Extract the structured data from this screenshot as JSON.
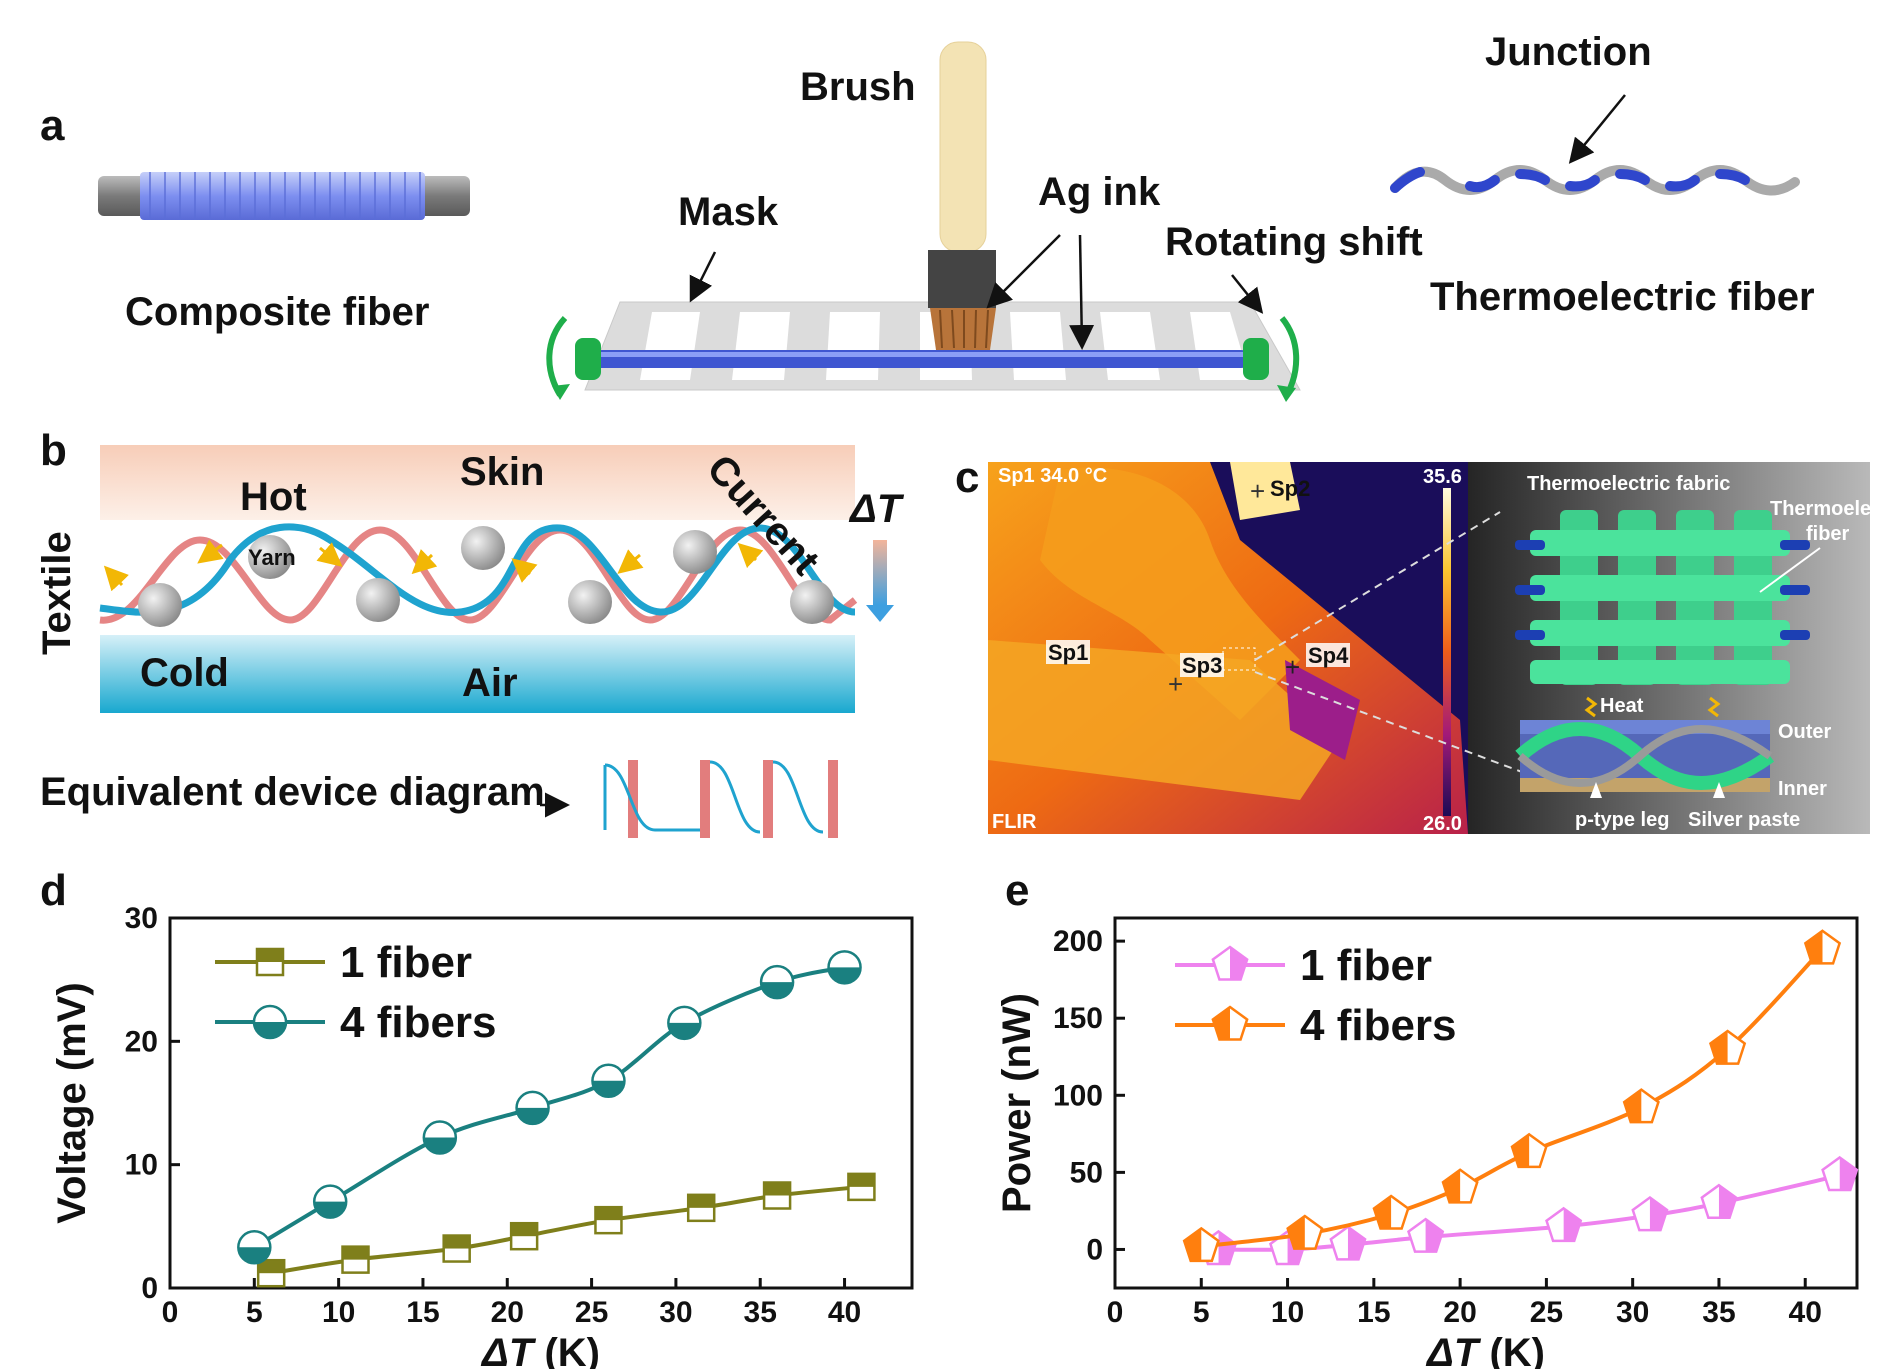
{
  "panels": {
    "a": {
      "letter": "a",
      "brush": "Brush",
      "junction": "Junction",
      "mask": "Mask",
      "ag_ink": "Ag ink",
      "rotating_shift": "Rotating shift",
      "composite_fiber": "Composite fiber",
      "thermoelectric_fiber": "Thermoelectric fiber"
    },
    "b": {
      "letter": "b",
      "hot": "Hot",
      "skin": "Skin",
      "current": "Current",
      "delta_t": "ΔT",
      "yarn": "Yarn",
      "textile": "Textile",
      "cold": "Cold",
      "air": "Air",
      "equivalent": "Equivalent device diagram"
    },
    "c": {
      "letter": "c",
      "readout": "Sp1  34.0 °C",
      "max_temp": "35.6 °C",
      "min_temp": "26.0 °C",
      "sp1": "Sp1",
      "sp2": "Sp2",
      "sp3": "Sp3",
      "sp4": "Sp4",
      "flir": "FLIR",
      "thermoelectric_fabric": "Thermoelectric fabric",
      "thermoelectric_fiber_1": "Thermoelectric",
      "thermoelectric_fiber_2": "fiber",
      "heat": "Heat",
      "outer": "Outer",
      "inner": "Inner",
      "ptype": "p-type leg",
      "silver": "Silver paste"
    }
  },
  "chart_data": [
    {
      "id": "d",
      "panel_letter": "d",
      "type": "line",
      "xlabel_sym": "ΔT",
      "xlabel_unit": " (K)",
      "ylabel": "Voltage (mV)",
      "xlim": [
        0,
        44
      ],
      "ylim": [
        0,
        30
      ],
      "xticks": [
        0,
        5,
        10,
        15,
        20,
        25,
        30,
        35,
        40
      ],
      "yticks": [
        0,
        10,
        20,
        30
      ],
      "legend_position": "top-left",
      "series": [
        {
          "name": "1 fiber",
          "color": "#7f7f1b",
          "marker": "square-top-half",
          "x": [
            6,
            11,
            17,
            21,
            26,
            31.5,
            36,
            41
          ],
          "y": [
            1.2,
            2.3,
            3.2,
            4.2,
            5.5,
            6.5,
            7.5,
            8.2
          ]
        },
        {
          "name": "4 fibers",
          "color": "#1a8080",
          "marker": "circle-bottom-half",
          "x": [
            5,
            9.5,
            16,
            21.5,
            26,
            30.5,
            36,
            40
          ],
          "y": [
            3.3,
            7,
            12.2,
            14.6,
            16.8,
            21.5,
            24.8,
            26
          ]
        }
      ]
    },
    {
      "id": "e",
      "panel_letter": "e",
      "type": "line",
      "xlabel_sym": "ΔT",
      "xlabel_unit": " (K)",
      "ylabel": "Power (nW)",
      "xlim": [
        0,
        43
      ],
      "ylim": [
        -25,
        215
      ],
      "xticks": [
        0,
        5,
        10,
        15,
        20,
        25,
        30,
        35,
        40
      ],
      "yticks": [
        0,
        50,
        100,
        150,
        200
      ],
      "legend_position": "top-left",
      "series": [
        {
          "name": "1 fiber",
          "color": "#ee82ee",
          "marker": "pentagon-right-half",
          "x": [
            6,
            10,
            13.5,
            18,
            26,
            31,
            35,
            42
          ],
          "y": [
            0,
            0,
            3,
            8,
            15,
            22,
            30,
            48
          ]
        },
        {
          "name": "4 fibers",
          "color": "#ff7f0e",
          "marker": "pentagon-left-half",
          "x": [
            5,
            11,
            16,
            20,
            24,
            30.5,
            35.5,
            41
          ],
          "y": [
            2,
            10,
            23,
            40,
            63,
            92,
            130,
            195
          ]
        }
      ]
    }
  ]
}
